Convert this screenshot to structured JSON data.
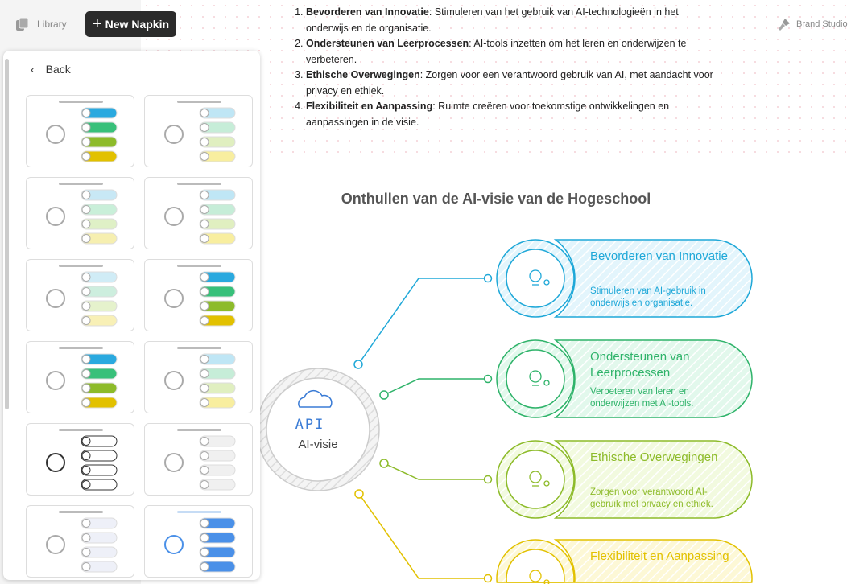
{
  "topbar": {
    "library_label": "Library",
    "new_napkin_label": "New Napkin",
    "brand_studio_label": "Brand Studio"
  },
  "panel": {
    "back_label": "Back",
    "thumbnail_count": 12
  },
  "document": {
    "items": [
      {
        "bold": "Bevorderen van Innovatie",
        "text": ": Stimuleren van het gebruik van AI-technologieën in het onderwijs en de organisatie."
      },
      {
        "bold": "Ondersteunen van Leerprocessen",
        "text": ": AI-tools inzetten om het leren en onderwijzen te verbeteren."
      },
      {
        "bold": "Ethische Overwegingen",
        "text": ": Zorgen voor een verantwoord gebruik van AI, met aandacht voor privacy en ethiek."
      },
      {
        "bold": "Flexibiliteit en Aanpassing",
        "text": ": Ruimte creëren voor toekomstige ontwikkelingen en aanpassingen in de visie."
      }
    ]
  },
  "diagram": {
    "title": "Onthullen van de AI-visie van de Hogeschool",
    "center": {
      "icon_text": "API",
      "label": "AI-visie"
    },
    "items": [
      {
        "title": "Bevorderen van Innovatie",
        "desc": "Stimuleren van AI-gebruik in onderwijs en organisatie.",
        "color": "#1fa8d8",
        "fill": "#e3f5fc",
        "icon": "lightbulb-icon"
      },
      {
        "title": "Ondersteunen van Leerprocessen",
        "desc": "Verbeteren van leren en onderwijzen met AI-tools.",
        "color": "#2fb36a",
        "fill": "#e2f8ec",
        "icon": "graduation-cap-icon"
      },
      {
        "title": "Ethische Overwegingen",
        "desc": "Zorgen voor verantwoord AI-gebruik met privacy en ethiek.",
        "color": "#8dbb2a",
        "fill": "#f2fadf",
        "icon": "shield-robot-icon"
      },
      {
        "title": "Flexibiliteit en Aanpassing",
        "desc": "",
        "color": "#e2c100",
        "fill": "#fdf8d6",
        "icon": "presentation-icon"
      }
    ]
  }
}
